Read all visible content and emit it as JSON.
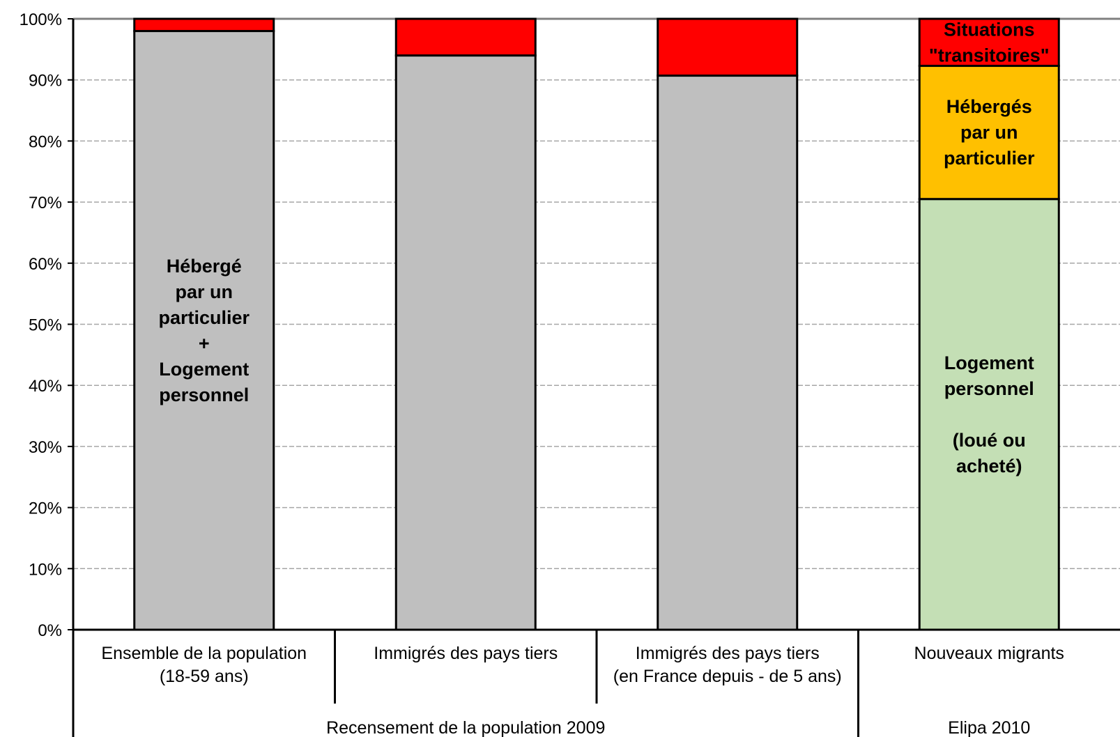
{
  "chart_data": {
    "type": "bar",
    "stacked": true,
    "ylim": [
      0,
      100
    ],
    "yticks": [
      "0%",
      "10%",
      "20%",
      "30%",
      "40%",
      "50%",
      "60%",
      "70%",
      "80%",
      "90%",
      "100%"
    ],
    "grid": true,
    "categories": [
      [
        "Ensemble de la population",
        "(18-59 ans)"
      ],
      [
        "Immigrés des pays tiers"
      ],
      [
        "Immigrés des pays tiers",
        "(en France depuis - de 5 ans)"
      ],
      [
        "Nouveaux migrants"
      ]
    ],
    "groups": [
      {
        "label": "Recensement de la population 2009",
        "categories": [
          0,
          1,
          2
        ]
      },
      {
        "label": "Elipa 2010",
        "categories": [
          3
        ]
      }
    ],
    "bars": [
      {
        "segments": [
          {
            "value": 98,
            "color": "#bfbfbf",
            "label": [
              "Hébergé",
              "par un",
              "particulier",
              "+",
              "Logement",
              "personnel"
            ]
          },
          {
            "value": 2,
            "color": "#ff0000"
          }
        ]
      },
      {
        "segments": [
          {
            "value": 94,
            "color": "#bfbfbf"
          },
          {
            "value": 6,
            "color": "#ff0000"
          }
        ]
      },
      {
        "segments": [
          {
            "value": 90.7,
            "color": "#bfbfbf"
          },
          {
            "value": 9.3,
            "color": "#ff0000"
          }
        ]
      },
      {
        "segments": [
          {
            "value": 70.5,
            "color": "#c4dfb5",
            "label": [
              "Logement",
              "personnel",
              "",
              "(loué ou",
              "acheté)"
            ]
          },
          {
            "value": 21.8,
            "color": "#ffc000",
            "label": [
              "Hébergés",
              "par un",
              "particulier"
            ]
          },
          {
            "value": 7.7,
            "color": "#ff0000",
            "label": [
              "Situations",
              "\"transitoires\""
            ]
          }
        ]
      }
    ]
  }
}
